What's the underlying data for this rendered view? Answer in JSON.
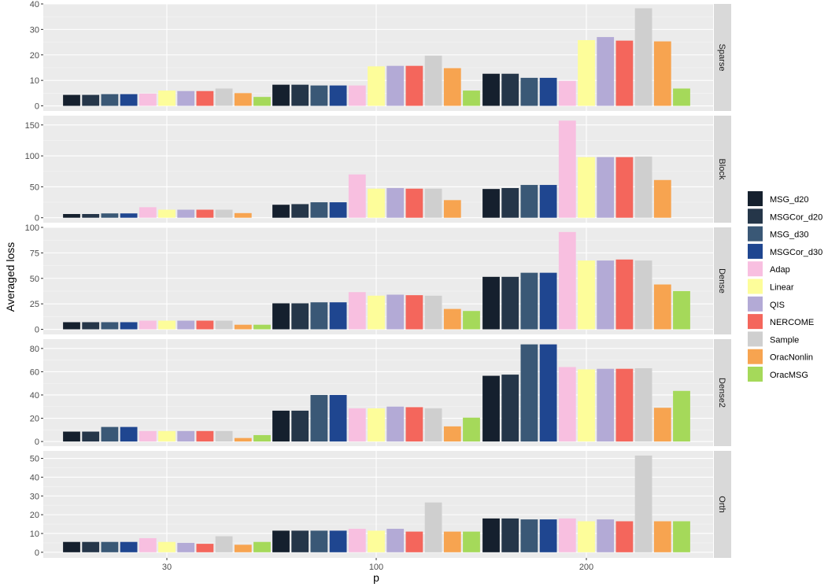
{
  "chart_data": {
    "type": "bar",
    "xlabel": "p",
    "ylabel": "Averaged loss",
    "categories": [
      "30",
      "100",
      "200"
    ],
    "series_names": [
      "MSG_d20",
      "MSGCor_d20",
      "MSG_d30",
      "MSGCor_d30",
      "Adap",
      "Linear",
      "QIS",
      "NERCOME",
      "Sample",
      "OracNonlin",
      "OracMSG"
    ],
    "colors": [
      "#15202e",
      "#253649",
      "#3a5876",
      "#1f4690",
      "#f8bfe0",
      "#fdfd9a",
      "#b3aad6",
      "#f4665c",
      "#cfcfcf",
      "#f7a450",
      "#a5d95a"
    ],
    "panels": [
      {
        "label": "Sparse",
        "ylim": [
          -2,
          40
        ],
        "yticks": [
          0,
          10,
          20,
          30,
          40
        ],
        "values": [
          [
            4.3,
            4.3,
            4.6,
            4.6,
            4.8,
            6.0,
            5.8,
            5.8,
            6.8,
            5.0,
            3.5
          ],
          [
            8.3,
            8.3,
            8.0,
            8.0,
            8.0,
            15.5,
            15.7,
            15.7,
            19.7,
            14.8,
            6.0
          ],
          [
            12.6,
            12.6,
            11.0,
            11.0,
            9.8,
            25.8,
            27.0,
            25.6,
            38.3,
            25.3,
            6.8
          ]
        ]
      },
      {
        "label": "Block",
        "ylim": [
          -8,
          165
        ],
        "yticks": [
          0,
          50,
          100,
          150
        ],
        "values": [
          [
            6.0,
            6.0,
            7.0,
            7.0,
            17.0,
            13.0,
            13.0,
            13.0,
            13.0,
            7.5,
            0
          ],
          [
            21.0,
            22.0,
            25.0,
            25.0,
            70.0,
            47.0,
            48.0,
            47.0,
            47.0,
            28.5,
            0
          ],
          [
            46.5,
            48.0,
            53.0,
            53.0,
            157.0,
            98.0,
            98.0,
            98.0,
            99.0,
            61.0,
            0
          ]
        ]
      },
      {
        "label": "Dense",
        "ylim": [
          -5,
          100
        ],
        "yticks": [
          0,
          25,
          50,
          75,
          100
        ],
        "values": [
          [
            7.0,
            7.0,
            7.0,
            7.0,
            8.5,
            8.5,
            8.5,
            8.5,
            8.5,
            4.5,
            4.5
          ],
          [
            25.5,
            25.5,
            26.5,
            26.5,
            36.5,
            33.0,
            34.0,
            33.5,
            33.0,
            20.0,
            18.0
          ],
          [
            51.5,
            51.5,
            55.5,
            55.5,
            95.5,
            67.5,
            67.5,
            68.5,
            67.5,
            44.0,
            37.5
          ]
        ]
      },
      {
        "label": "Dense2",
        "ylim": [
          -4,
          88
        ],
        "yticks": [
          0,
          20,
          40,
          60,
          80
        ],
        "values": [
          [
            8.5,
            8.5,
            12.5,
            12.5,
            9.0,
            9.0,
            9.0,
            9.0,
            9.0,
            3.0,
            5.5
          ],
          [
            26.5,
            26.5,
            40.0,
            40.0,
            28.5,
            28.5,
            30.0,
            29.5,
            28.5,
            13.0,
            20.5
          ],
          [
            56.5,
            57.5,
            83.5,
            83.5,
            64.0,
            62.0,
            62.5,
            62.5,
            63.0,
            29.0,
            43.5
          ]
        ]
      },
      {
        "label": "Orth",
        "ylim": [
          -3,
          54
        ],
        "yticks": [
          0,
          10,
          20,
          30,
          40,
          50
        ],
        "values": [
          [
            5.5,
            5.5,
            5.5,
            5.5,
            7.5,
            5.5,
            5.0,
            4.5,
            8.5,
            4.0,
            5.5
          ],
          [
            11.5,
            11.5,
            11.5,
            11.5,
            12.5,
            11.5,
            12.5,
            11.0,
            26.5,
            11.0,
            11.0
          ],
          [
            18.0,
            18.0,
            17.5,
            17.5,
            18.0,
            16.5,
            17.5,
            16.5,
            51.5,
            16.5,
            16.5
          ]
        ]
      }
    ]
  }
}
